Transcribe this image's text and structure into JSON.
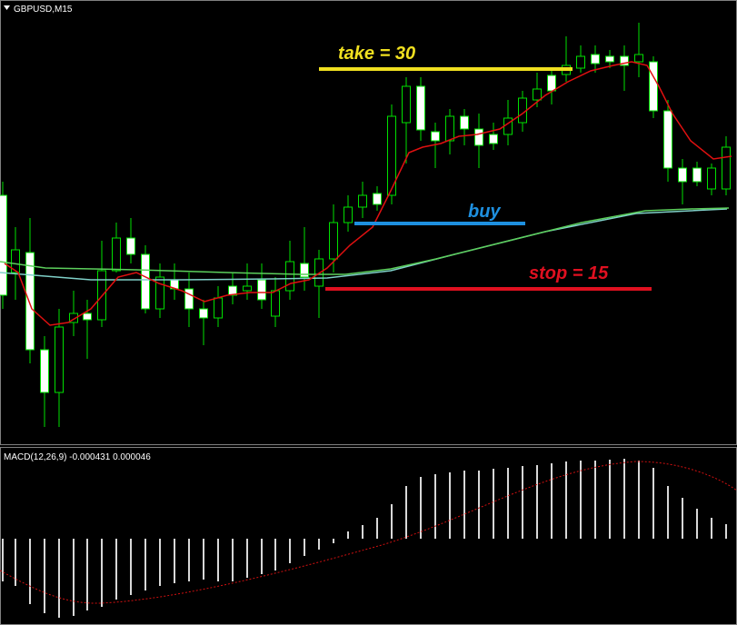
{
  "header": {
    "symbol": "GBPUSD,M15"
  },
  "annotations": {
    "take": "take = 30",
    "buy": "buy",
    "stop": "stop = 15"
  },
  "indicator": {
    "label": "MACD(12,26,9) -0.000431 0.000046"
  }
}
